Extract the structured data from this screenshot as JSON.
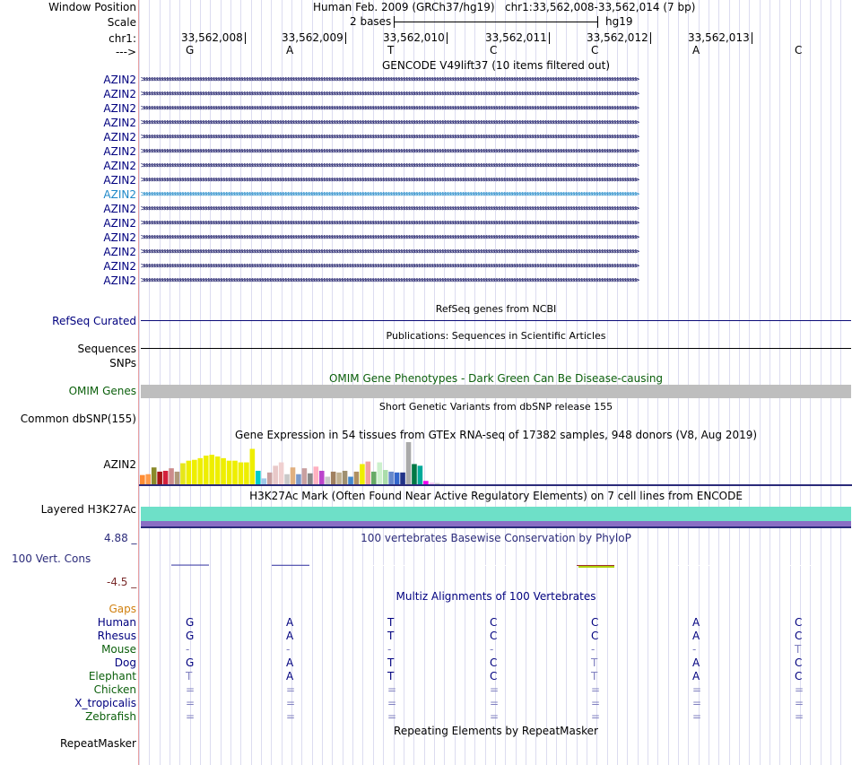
{
  "header": {
    "window_position_label": "Window Position",
    "scale_label": "Scale",
    "chrom_label": "chr1:",
    "strand_label": "--->",
    "assembly": "Human Feb. 2009 (GRCh37/hg19)",
    "position": "chr1:33,562,008-33,562,014 (7 bp)",
    "scale_text": "2 bases",
    "db": "hg19",
    "coords": [
      "33,562,008",
      "33,562,009",
      "33,562,010",
      "33,562,011",
      "33,562,012",
      "33,562,013"
    ],
    "bases": [
      "G",
      "A",
      "T",
      "C",
      "C",
      "A",
      "C"
    ]
  },
  "gencode": {
    "title": "GENCODE V49lift37 (10 items filtered out)",
    "transcripts": [
      "AZIN2",
      "AZIN2",
      "AZIN2",
      "AZIN2",
      "AZIN2",
      "AZIN2",
      "AZIN2",
      "AZIN2",
      "AZIN2",
      "AZIN2",
      "AZIN2",
      "AZIN2",
      "AZIN2",
      "AZIN2",
      "AZIN2"
    ],
    "highlighted_index": 8,
    "arrows": ">>>>>>>>>>>>>>>>>>>>>>>>>>>>>>>>>>>>>>>>>>>>>>>>>>>>>>>>>>>>>>>>>>>>>>>>>>>>>>>>>>>>>>>>>>>>>>>>>>>>>>>>>>>>>>>>>>>>>>>>>>>>>>>>>>>>>>>>>>>>>>>>>>>>>>>>>>>>>>>>>>>>>>>>>>>>>>>>>>>>>>>>>>>>>>>>>"
  },
  "refseq": {
    "title": "RefSeq genes from NCBI",
    "label": "RefSeq Curated"
  },
  "pubs": {
    "title": "Publications: Sequences in Scientific Articles",
    "label": "Sequences"
  },
  "snps": {
    "label": "SNPs"
  },
  "omim": {
    "title": "OMIM Gene Phenotypes - Dark Green Can Be Disease-causing",
    "label": "OMIM Genes"
  },
  "dbsnp": {
    "title": "Short Genetic Variants from dbSNP release 155",
    "label": "Common dbSNP(155)"
  },
  "gtex": {
    "title": "Gene Expression in 54 tissues from GTEx RNA-seq of 17382 samples, 948 donors (V8, Aug 2019)",
    "label": "AZIN2",
    "bars": [
      {
        "v": 0.22,
        "c": "#ff8c33"
      },
      {
        "v": 0.24,
        "c": "#ff9a4a"
      },
      {
        "v": 0.4,
        "c": "#8a8a2a"
      },
      {
        "v": 0.3,
        "c": "#a51616"
      },
      {
        "v": 0.32,
        "c": "#d4203c"
      },
      {
        "v": 0.38,
        "c": "#cc8c8c"
      },
      {
        "v": 0.3,
        "c": "#b09a7a"
      },
      {
        "v": 0.5,
        "c": "#e6e61a"
      },
      {
        "v": 0.56,
        "c": "#eeee00"
      },
      {
        "v": 0.58,
        "c": "#eeee00"
      },
      {
        "v": 0.62,
        "c": "#eeee00"
      },
      {
        "v": 0.68,
        "c": "#eeee00"
      },
      {
        "v": 0.7,
        "c": "#eeee00"
      },
      {
        "v": 0.66,
        "c": "#eeee00"
      },
      {
        "v": 0.62,
        "c": "#eeee00"
      },
      {
        "v": 0.56,
        "c": "#eeee00"
      },
      {
        "v": 0.56,
        "c": "#eeee00"
      },
      {
        "v": 0.52,
        "c": "#eeee00"
      },
      {
        "v": 0.52,
        "c": "#eeee00"
      },
      {
        "v": 0.84,
        "c": "#eeee00"
      },
      {
        "v": 0.32,
        "c": "#00cccc"
      },
      {
        "v": 0.14,
        "c": "#a0c8e8"
      },
      {
        "v": 0.28,
        "c": "#c8a0a0"
      },
      {
        "v": 0.44,
        "c": "#e8c8c8"
      },
      {
        "v": 0.52,
        "c": "#f0d0d0"
      },
      {
        "v": 0.24,
        "c": "#c8c8c8"
      },
      {
        "v": 0.4,
        "c": "#e0b080"
      },
      {
        "v": 0.24,
        "c": "#7a9acc"
      },
      {
        "v": 0.38,
        "c": "#c8a0a0"
      },
      {
        "v": 0.26,
        "c": "#888888"
      },
      {
        "v": 0.42,
        "c": "#ffb0c0"
      },
      {
        "v": 0.32,
        "c": "#bb44cc"
      },
      {
        "v": 0.18,
        "c": "#c8c8c8"
      },
      {
        "v": 0.3,
        "c": "#a08060"
      },
      {
        "v": 0.28,
        "c": "#c0b090"
      },
      {
        "v": 0.32,
        "c": "#a09070"
      },
      {
        "v": 0.18,
        "c": "#4488cc"
      },
      {
        "v": 0.3,
        "c": "#b09060"
      },
      {
        "v": 0.48,
        "c": "#eeee00"
      },
      {
        "v": 0.54,
        "c": "#f0a0a0"
      },
      {
        "v": 0.3,
        "c": "#66aa66"
      },
      {
        "v": 0.52,
        "c": "#ccf0cc"
      },
      {
        "v": 0.34,
        "c": "#aaddaa"
      },
      {
        "v": 0.3,
        "c": "#6688cc"
      },
      {
        "v": 0.28,
        "c": "#3366cc"
      },
      {
        "v": 0.28,
        "c": "#223388"
      },
      {
        "v": 1.0,
        "c": "#aaaaaa"
      },
      {
        "v": 0.48,
        "c": "#007744"
      },
      {
        "v": 0.44,
        "c": "#00aa99"
      },
      {
        "v": 0.08,
        "c": "#ee00ee"
      },
      {
        "v": 0.04,
        "c": "#f0c0f0"
      },
      {
        "v": 0.03,
        "c": "#cccccc"
      },
      {
        "v": 0.02,
        "c": "#dddddd"
      },
      {
        "v": 0.02,
        "c": "#eeeeee"
      }
    ]
  },
  "h3k27ac": {
    "title": "H3K27Ac Mark (Often Found Near Active Regulatory Elements) on 7 cell lines from ENCODE",
    "label": "Layered H3K27Ac"
  },
  "phylop": {
    "title": "100 vertebrates Basewise Conservation by PhyloP",
    "label": "100 Vert. Cons",
    "max_label": "4.88 _",
    "min_label": "-4.5 _",
    "values": [
      0.1,
      0.05,
      0.0,
      0.0,
      -0.05,
      0.0,
      0.0
    ]
  },
  "multiz": {
    "title": "Multiz Alignments of 100 Vertebrates",
    "gaps_label": "Gaps",
    "species": [
      {
        "name": "Human",
        "color": "#00007f",
        "bases": [
          "G",
          "A",
          "T",
          "C",
          "C",
          "A",
          "C"
        ]
      },
      {
        "name": "Rhesus",
        "color": "#00007f",
        "bases": [
          "G",
          "A",
          "T",
          "C",
          "C",
          "A",
          "C"
        ]
      },
      {
        "name": "Mouse",
        "color": "#0b5f0b",
        "bases": [
          "-",
          "-",
          "-",
          "-",
          "-",
          "-",
          "T"
        ]
      },
      {
        "name": "Dog",
        "color": "#00007f",
        "bases": [
          "G",
          "A",
          "T",
          "C",
          "T",
          "A",
          "C"
        ]
      },
      {
        "name": "Elephant",
        "color": "#0b5f0b",
        "bases": [
          "T",
          "A",
          "T",
          "C",
          "T",
          "A",
          "C"
        ]
      },
      {
        "name": "Chicken",
        "color": "#0b5f0b",
        "bases": [
          "=",
          "=",
          "=",
          "=",
          "=",
          "=",
          "="
        ]
      },
      {
        "name": "X_tropicalis",
        "color": "#00007f",
        "bases": [
          "=",
          "=",
          "=",
          "=",
          "=",
          "=",
          "="
        ]
      },
      {
        "name": "Zebrafish",
        "color": "#0b5f0b",
        "bases": [
          "=",
          "=",
          "=",
          "=",
          "=",
          "=",
          "="
        ]
      }
    ]
  },
  "rmsk": {
    "title": "Repeating Elements by RepeatMasker",
    "label": "RepeatMasker"
  }
}
